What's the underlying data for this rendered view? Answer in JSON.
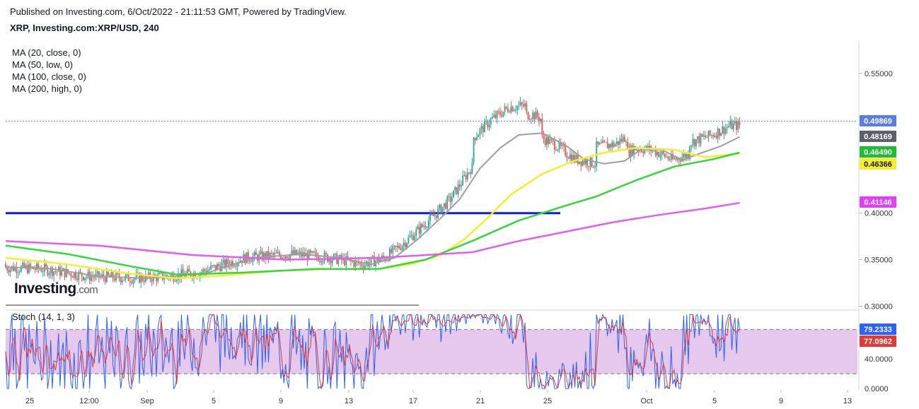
{
  "header": {
    "published": "Published on Investing.com, 6/Oct/2022 - 21:11:53 GMT, Powered by TradingView.",
    "symbol": "XRP, Investing.com:XRP/USD, 240"
  },
  "logo": {
    "name": "Investing",
    "domain": ".com"
  },
  "ma_legend": [
    "MA (20, close, 0)",
    "MA (50, low, 0)",
    "MA (100, close, 0)",
    "MA (200, high, 0)"
  ],
  "stoch_legend": "Stoch (14, 1, 3)",
  "chart_data": {
    "type": "candlestick",
    "price_axis": {
      "ticks": [
        "0.55000",
        "0.40000",
        "0.35000",
        "0.30000"
      ]
    },
    "stoch_axis": {
      "ticks": [
        "40.0000",
        "0.0000"
      ],
      "band": [
        20,
        80
      ]
    },
    "time_axis": {
      "labels": [
        "25",
        "12:00",
        "Sep",
        "5",
        "9",
        "13",
        "17",
        "21",
        "25",
        "Oct",
        "5",
        "9",
        "13"
      ]
    },
    "price_labels": [
      {
        "value": 0.49869,
        "text": "0.49869",
        "bg": "#5b7ee5",
        "series": "last"
      },
      {
        "value": 0.48169,
        "text": "0.48169",
        "bg": "#5d606b",
        "series": "MA20"
      },
      {
        "value": 0.4649,
        "text": "0.46490",
        "bg": "#1ebd32",
        "series": "MA100"
      },
      {
        "value": 0.46366,
        "text": "0.46366",
        "bg": "#f5ef2b",
        "series": "MA50"
      },
      {
        "value": 0.41146,
        "text": "0.41146",
        "bg": "#e040fb",
        "series": "MA200"
      }
    ],
    "stoch_labels": [
      {
        "value": 79.2333,
        "text": "79.2333",
        "bg": "#2962ff"
      },
      {
        "value": 77.0962,
        "text": "77.0962",
        "bg": "#e53935"
      }
    ],
    "horizontal_line": {
      "value": 0.4,
      "color": "#0d1ed8"
    },
    "ma_colors": {
      "MA20": "#9e9e9e",
      "MA50": "#f5ef2b",
      "MA100": "#35d83a",
      "MA200": "#e35ef0"
    },
    "candle_colors": {
      "up": "#26a69a",
      "down": "#ef5350"
    },
    "ma_series": {
      "MA20": [
        [
          0,
          0.342
        ],
        [
          30,
          0.34
        ],
        [
          60,
          0.332
        ],
        [
          90,
          0.33
        ],
        [
          110,
          0.332
        ],
        [
          130,
          0.336
        ],
        [
          160,
          0.352
        ],
        [
          190,
          0.356
        ],
        [
          215,
          0.352
        ],
        [
          235,
          0.345
        ],
        [
          250,
          0.352
        ],
        [
          265,
          0.372
        ],
        [
          280,
          0.395
        ],
        [
          292,
          0.415
        ],
        [
          305,
          0.448
        ],
        [
          318,
          0.47
        ],
        [
          330,
          0.484
        ],
        [
          345,
          0.486
        ],
        [
          360,
          0.473
        ],
        [
          372,
          0.458
        ],
        [
          385,
          0.453
        ],
        [
          398,
          0.456
        ],
        [
          410,
          0.47
        ],
        [
          422,
          0.468
        ],
        [
          435,
          0.457
        ],
        [
          448,
          0.465
        ],
        [
          460,
          0.472
        ],
        [
          472,
          0.482
        ]
      ],
      "MA50": [
        [
          0,
          0.352
        ],
        [
          40,
          0.345
        ],
        [
          80,
          0.335
        ],
        [
          110,
          0.33
        ],
        [
          140,
          0.333
        ],
        [
          175,
          0.338
        ],
        [
          210,
          0.34
        ],
        [
          240,
          0.34
        ],
        [
          260,
          0.345
        ],
        [
          280,
          0.355
        ],
        [
          295,
          0.372
        ],
        [
          310,
          0.395
        ],
        [
          325,
          0.42
        ],
        [
          345,
          0.442
        ],
        [
          365,
          0.456
        ],
        [
          385,
          0.465
        ],
        [
          405,
          0.47
        ],
        [
          430,
          0.468
        ],
        [
          450,
          0.46
        ],
        [
          472,
          0.464
        ]
      ],
      "MA100": [
        [
          0,
          0.365
        ],
        [
          40,
          0.356
        ],
        [
          80,
          0.343
        ],
        [
          110,
          0.334
        ],
        [
          150,
          0.336
        ],
        [
          200,
          0.34
        ],
        [
          240,
          0.34
        ],
        [
          270,
          0.35
        ],
        [
          300,
          0.37
        ],
        [
          330,
          0.392
        ],
        [
          360,
          0.408
        ],
        [
          380,
          0.418
        ],
        [
          405,
          0.435
        ],
        [
          430,
          0.45
        ],
        [
          455,
          0.458
        ],
        [
          472,
          0.465
        ]
      ],
      "MA200": [
        [
          0,
          0.37
        ],
        [
          60,
          0.365
        ],
        [
          120,
          0.355
        ],
        [
          180,
          0.35
        ],
        [
          240,
          0.352
        ],
        [
          300,
          0.358
        ],
        [
          330,
          0.37
        ],
        [
          360,
          0.38
        ],
        [
          390,
          0.39
        ],
        [
          420,
          0.398
        ],
        [
          450,
          0.405
        ],
        [
          472,
          0.411
        ]
      ]
    }
  }
}
